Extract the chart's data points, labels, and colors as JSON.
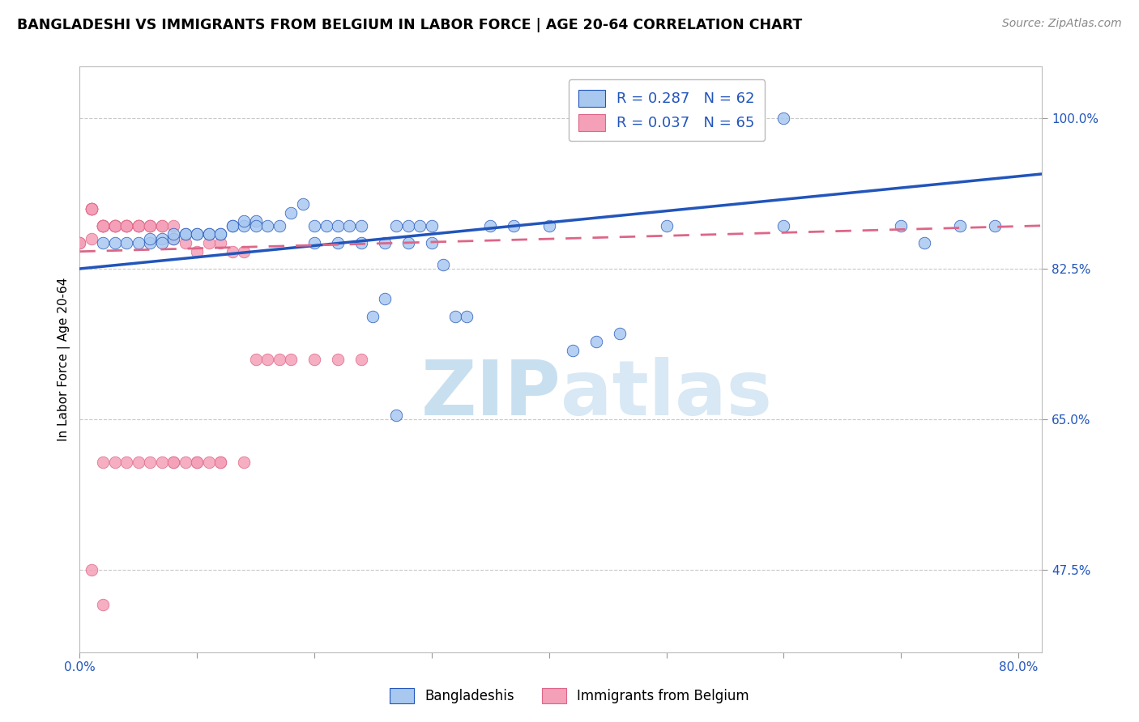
{
  "title": "BANGLADESHI VS IMMIGRANTS FROM BELGIUM IN LABOR FORCE | AGE 20-64 CORRELATION CHART",
  "source": "Source: ZipAtlas.com",
  "ylabel": "In Labor Force | Age 20-64",
  "legend_label1": "Bangladeshis",
  "legend_label2": "Immigrants from Belgium",
  "watermark_zip": "ZIP",
  "watermark_atlas": "atlas",
  "xlim": [
    0.0,
    0.82
  ],
  "ylim": [
    0.38,
    1.06
  ],
  "y_ticks": [
    0.475,
    0.65,
    0.825,
    1.0
  ],
  "y_tick_labels": [
    "47.5%",
    "65.0%",
    "82.5%",
    "100.0%"
  ],
  "x_ticks": [
    0.0,
    0.1,
    0.2,
    0.3,
    0.4,
    0.5,
    0.6,
    0.7,
    0.8
  ],
  "x_tick_labels": [
    "0.0%",
    "",
    "",
    "",
    "",
    "",
    "",
    "",
    "80.0%"
  ],
  "blue_scatter_x": [
    0.02,
    0.03,
    0.04,
    0.05,
    0.06,
    0.06,
    0.07,
    0.07,
    0.08,
    0.08,
    0.09,
    0.09,
    0.1,
    0.1,
    0.11,
    0.11,
    0.12,
    0.12,
    0.13,
    0.13,
    0.14,
    0.14,
    0.15,
    0.15,
    0.16,
    0.17,
    0.18,
    0.19,
    0.2,
    0.21,
    0.22,
    0.23,
    0.24,
    0.25,
    0.26,
    0.27,
    0.28,
    0.29,
    0.3,
    0.31,
    0.32,
    0.33,
    0.35,
    0.37,
    0.4,
    0.42,
    0.44,
    0.46,
    0.2,
    0.22,
    0.24,
    0.26,
    0.28,
    0.3,
    0.5,
    0.6,
    0.7,
    0.75,
    0.78,
    0.6,
    0.72,
    0.27
  ],
  "blue_scatter_y": [
    0.855,
    0.855,
    0.855,
    0.855,
    0.855,
    0.86,
    0.86,
    0.855,
    0.86,
    0.865,
    0.865,
    0.865,
    0.865,
    0.865,
    0.865,
    0.865,
    0.865,
    0.865,
    0.875,
    0.875,
    0.875,
    0.88,
    0.88,
    0.875,
    0.875,
    0.875,
    0.89,
    0.9,
    0.875,
    0.875,
    0.875,
    0.875,
    0.875,
    0.77,
    0.79,
    0.875,
    0.875,
    0.875,
    0.875,
    0.83,
    0.77,
    0.77,
    0.875,
    0.875,
    0.875,
    0.73,
    0.74,
    0.75,
    0.855,
    0.855,
    0.855,
    0.855,
    0.855,
    0.855,
    0.875,
    0.875,
    0.875,
    0.875,
    0.875,
    1.0,
    0.855,
    0.655
  ],
  "pink_scatter_x": [
    0.0,
    0.0,
    0.01,
    0.01,
    0.01,
    0.01,
    0.01,
    0.01,
    0.02,
    0.02,
    0.02,
    0.02,
    0.02,
    0.02,
    0.03,
    0.03,
    0.03,
    0.03,
    0.03,
    0.04,
    0.04,
    0.04,
    0.04,
    0.04,
    0.05,
    0.05,
    0.05,
    0.05,
    0.06,
    0.06,
    0.06,
    0.07,
    0.07,
    0.08,
    0.08,
    0.09,
    0.1,
    0.11,
    0.12,
    0.13,
    0.14,
    0.15,
    0.16,
    0.17,
    0.18,
    0.2,
    0.22,
    0.24,
    0.08,
    0.1,
    0.12,
    0.14,
    0.02,
    0.03,
    0.04,
    0.05,
    0.06,
    0.07,
    0.08,
    0.09,
    0.1,
    0.11,
    0.12,
    0.01,
    0.02
  ],
  "pink_scatter_y": [
    0.855,
    0.855,
    0.895,
    0.895,
    0.895,
    0.895,
    0.895,
    0.86,
    0.875,
    0.875,
    0.875,
    0.875,
    0.875,
    0.875,
    0.875,
    0.875,
    0.875,
    0.875,
    0.875,
    0.875,
    0.875,
    0.875,
    0.875,
    0.875,
    0.875,
    0.875,
    0.875,
    0.875,
    0.875,
    0.875,
    0.875,
    0.875,
    0.875,
    0.86,
    0.875,
    0.855,
    0.845,
    0.855,
    0.855,
    0.845,
    0.845,
    0.72,
    0.72,
    0.72,
    0.72,
    0.72,
    0.72,
    0.72,
    0.6,
    0.6,
    0.6,
    0.6,
    0.6,
    0.6,
    0.6,
    0.6,
    0.6,
    0.6,
    0.6,
    0.6,
    0.6,
    0.6,
    0.6,
    0.475,
    0.435
  ],
  "blue_line_x": [
    0.0,
    0.82
  ],
  "blue_line_y": [
    0.825,
    0.935
  ],
  "pink_line_x": [
    0.0,
    0.82
  ],
  "pink_line_y": [
    0.845,
    0.875
  ],
  "scatter_color_blue": "#a8c8f0",
  "scatter_color_pink": "#f4a0b8",
  "line_color_blue": "#2255bb",
  "line_color_pink": "#dd6688",
  "grid_color": "#c8c8c8",
  "title_fontsize": 12.5,
  "axis_label_fontsize": 11,
  "tick_fontsize": 11,
  "source_fontsize": 10,
  "watermark_color_zip": "#c8dff0",
  "watermark_color_atlas": "#d8e8f4",
  "watermark_fontsize": 68
}
